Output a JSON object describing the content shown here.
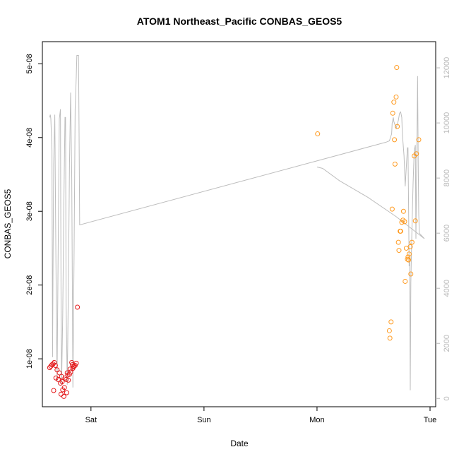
{
  "chart_data": {
    "type": "scatter",
    "title": "ATOM1 Northeast_Pacific CONBAS_GEOS5",
    "xlabel": "Date",
    "ylabel": "CONBAS_GEOS5",
    "x_ticks": [
      {
        "x": 1.0,
        "label": "Sat"
      },
      {
        "x": 2.0,
        "label": "Sun"
      },
      {
        "x": 3.0,
        "label": "Mon"
      },
      {
        "x": 4.0,
        "label": "Tue"
      }
    ],
    "y_ticks": [
      {
        "y": 1e-08,
        "label": "1e-08"
      },
      {
        "y": 2e-08,
        "label": "2e-08"
      },
      {
        "y": 3e-08,
        "label": "3e-08"
      },
      {
        "y": 4e-08,
        "label": "4e-08"
      },
      {
        "y": 5e-08,
        "label": "5e-08"
      }
    ],
    "y2_ticks": [
      {
        "y": 0,
        "label": "0"
      },
      {
        "y": 2000,
        "label": "2000"
      },
      {
        "y": 4000,
        "label": "4000"
      },
      {
        "y": 6000,
        "label": "6000"
      },
      {
        "y": 8000,
        "label": "8000"
      },
      {
        "y": 10000,
        "label": "10000"
      },
      {
        "y": 12000,
        "label": "12000"
      }
    ],
    "xlim": [
      0.57,
      4.05
    ],
    "ylim": [
      3.5e-09,
      5.3e-08
    ],
    "y2lim": [
      -300,
      12950
    ],
    "colors": {
      "red_series": "#e41a1c",
      "orange_series": "#ff9a1f",
      "altitude_line": "#bdbdbd"
    },
    "series": [
      {
        "color": "red",
        "axis": "left",
        "points": [
          [
            0.635,
            8.8e-09
          ],
          [
            0.645,
            9e-09
          ],
          [
            0.655,
            9.2e-09
          ],
          [
            0.665,
            9.3e-09
          ],
          [
            0.67,
            5.7e-09
          ],
          [
            0.675,
            9.5e-09
          ],
          [
            0.685,
            9.1e-09
          ],
          [
            0.69,
            7.4e-09
          ],
          [
            0.7,
            8.5e-09
          ],
          [
            0.71,
            7.2e-09
          ],
          [
            0.72,
            8.1e-09
          ],
          [
            0.73,
            6.7e-09
          ],
          [
            0.735,
            5.2e-09
          ],
          [
            0.74,
            7.6e-09
          ],
          [
            0.745,
            6.9e-09
          ],
          [
            0.75,
            5.8e-09
          ],
          [
            0.76,
            4.9e-09
          ],
          [
            0.765,
            6.1e-09
          ],
          [
            0.77,
            7.4e-09
          ],
          [
            0.78,
            7.2e-09
          ],
          [
            0.785,
            5.4e-09
          ],
          [
            0.79,
            8.1e-09
          ],
          [
            0.795,
            7.8e-09
          ],
          [
            0.8,
            7.1e-09
          ],
          [
            0.81,
            7.9e-09
          ],
          [
            0.815,
            8.6e-09
          ],
          [
            0.82,
            8.2e-09
          ],
          [
            0.83,
            9.5e-09
          ],
          [
            0.835,
            9.2e-09
          ],
          [
            0.84,
            8.7e-09
          ],
          [
            0.845,
            8.9e-09
          ],
          [
            0.85,
            9e-09
          ],
          [
            0.86,
            9.1e-09
          ],
          [
            0.87,
            9.4e-09
          ],
          [
            0.88,
            1.7e-08
          ]
        ]
      },
      {
        "color": "orange",
        "axis": "left",
        "points": [
          [
            3.005,
            4.05e-08
          ],
          [
            3.64,
            1.38e-08
          ],
          [
            3.645,
            1.28e-08
          ],
          [
            3.655,
            1.5e-08
          ],
          [
            3.665,
            3.03e-08
          ],
          [
            3.67,
            4.33e-08
          ],
          [
            3.68,
            4.48e-08
          ],
          [
            3.685,
            3.97e-08
          ],
          [
            3.69,
            3.64e-08
          ],
          [
            3.7,
            4.55e-08
          ],
          [
            3.705,
            4.95e-08
          ],
          [
            3.71,
            4.15e-08
          ],
          [
            3.72,
            2.58e-08
          ],
          [
            3.725,
            2.47e-08
          ],
          [
            3.735,
            2.73e-08
          ],
          [
            3.74,
            2.73e-08
          ],
          [
            3.75,
            2.85e-08
          ],
          [
            3.76,
            2.88e-08
          ],
          [
            3.765,
            3e-08
          ],
          [
            3.775,
            2.86e-08
          ],
          [
            3.78,
            2.05e-08
          ],
          [
            3.79,
            2.5e-08
          ],
          [
            3.8,
            2.35e-08
          ],
          [
            3.805,
            2.38e-08
          ],
          [
            3.81,
            2.34e-08
          ],
          [
            3.815,
            2.42e-08
          ],
          [
            3.825,
            2.52e-08
          ],
          [
            3.83,
            2.15e-08
          ],
          [
            3.84,
            2.58e-08
          ],
          [
            3.86,
            3.75e-08
          ],
          [
            3.87,
            2.87e-08
          ],
          [
            3.88,
            3.78e-08
          ],
          [
            3.9,
            3.97e-08
          ]
        ]
      }
    ],
    "altitude_line": {
      "color": "gray",
      "axis": "right",
      "points": [
        [
          0.635,
          10200
        ],
        [
          0.64,
          10300
        ],
        [
          0.645,
          10150
        ],
        [
          0.655,
          9000
        ],
        [
          0.66,
          1500
        ],
        [
          0.665,
          5200
        ],
        [
          0.67,
          8500
        ],
        [
          0.68,
          10300
        ],
        [
          0.69,
          5000
        ],
        [
          0.7,
          600
        ],
        [
          0.71,
          5500
        ],
        [
          0.72,
          10150
        ],
        [
          0.73,
          10500
        ],
        [
          0.735,
          4000
        ],
        [
          0.74,
          500
        ],
        [
          0.75,
          3000
        ],
        [
          0.76,
          7000
        ],
        [
          0.77,
          10200
        ],
        [
          0.775,
          10200
        ],
        [
          0.78,
          3500
        ],
        [
          0.79,
          500
        ],
        [
          0.8,
          4000
        ],
        [
          0.81,
          8500
        ],
        [
          0.82,
          11100
        ],
        [
          0.83,
          8000
        ],
        [
          0.84,
          400
        ],
        [
          0.85,
          5000
        ],
        [
          0.86,
          10500
        ],
        [
          0.87,
          11700
        ],
        [
          0.875,
          12450
        ],
        [
          0.885,
          12450
        ],
        [
          0.89,
          12450
        ],
        [
          0.895,
          9500
        ],
        [
          0.9,
          6300
        ],
        [
          3.61,
          9300
        ],
        [
          3.64,
          9350
        ],
        [
          3.66,
          9600
        ],
        [
          3.665,
          10000
        ],
        [
          3.675,
          10200
        ],
        [
          3.68,
          10050
        ],
        [
          3.7,
          9800
        ],
        [
          3.72,
          10100
        ],
        [
          3.73,
          10350
        ],
        [
          3.74,
          10400
        ],
        [
          3.75,
          10200
        ],
        [
          3.755,
          9600
        ],
        [
          3.77,
          8800
        ],
        [
          3.78,
          7700
        ],
        [
          3.79,
          8400
        ],
        [
          3.8,
          9100
        ],
        [
          3.805,
          9100
        ],
        [
          3.81,
          7000
        ],
        [
          3.815,
          4800
        ],
        [
          3.82,
          5000
        ],
        [
          3.825,
          300
        ],
        [
          3.83,
          4200
        ],
        [
          3.84,
          6200
        ],
        [
          3.85,
          7800
        ],
        [
          3.86,
          9000
        ],
        [
          3.87,
          9200
        ],
        [
          3.875,
          5800
        ],
        [
          3.885,
          9700
        ],
        [
          3.89,
          11700
        ],
        [
          3.895,
          8700
        ],
        [
          3.9,
          6700
        ],
        [
          3.905,
          6000
        ],
        [
          3.95,
          5800
        ],
        [
          3.7,
          6600
        ],
        [
          3.45,
          7300
        ],
        [
          3.2,
          7900
        ],
        [
          3.05,
          8350
        ],
        [
          3.0,
          8400
        ]
      ]
    }
  }
}
